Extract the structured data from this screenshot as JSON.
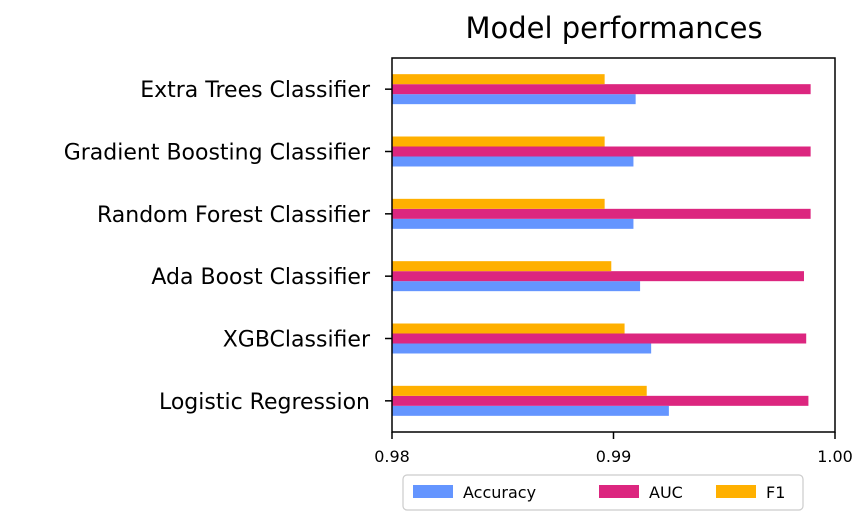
{
  "chart_data": {
    "type": "bar",
    "orientation": "horizontal",
    "title": "Model performances",
    "xlabel": "",
    "ylabel": "",
    "xlim": [
      0.98,
      1.0
    ],
    "x_ticks": [
      0.98,
      0.99,
      1.0
    ],
    "x_tick_labels": [
      "0.98",
      "0.99",
      "1.00"
    ],
    "grid": false,
    "legend_position": "bottom, horizontal",
    "categories": [
      "Logistic Regression",
      "XGBClassifier",
      "Ada Boost Classifier",
      "Random Forest Classifier",
      "Gradient Boosting Classifier",
      "Extra Trees Classifier"
    ],
    "series": [
      {
        "name": "Accuracy",
        "color": "#6495ff",
        "values": [
          0.9925,
          0.9917,
          0.9912,
          0.9909,
          0.9909,
          0.991
        ]
      },
      {
        "name": "AUC",
        "color": "#dc267f",
        "values": [
          0.9988,
          0.9987,
          0.9986,
          0.9989,
          0.9989,
          0.9989
        ]
      },
      {
        "name": "F1",
        "color": "#ffb000",
        "values": [
          0.9915,
          0.9905,
          0.9899,
          0.9896,
          0.9896,
          0.9896
        ]
      }
    ]
  }
}
